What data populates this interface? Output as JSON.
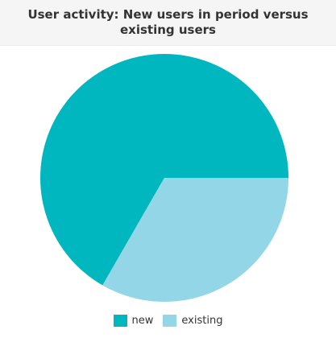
{
  "chart_data": {
    "type": "pie",
    "title": "User activity: New users in period versus existing users",
    "slices": [
      {
        "label": "new",
        "value": 66.7,
        "color": "#00b7bf"
      },
      {
        "label": "existing",
        "value": 33.3,
        "color": "#92d6e8"
      }
    ],
    "legend_position": "bottom",
    "start_angle_deg": 0
  }
}
